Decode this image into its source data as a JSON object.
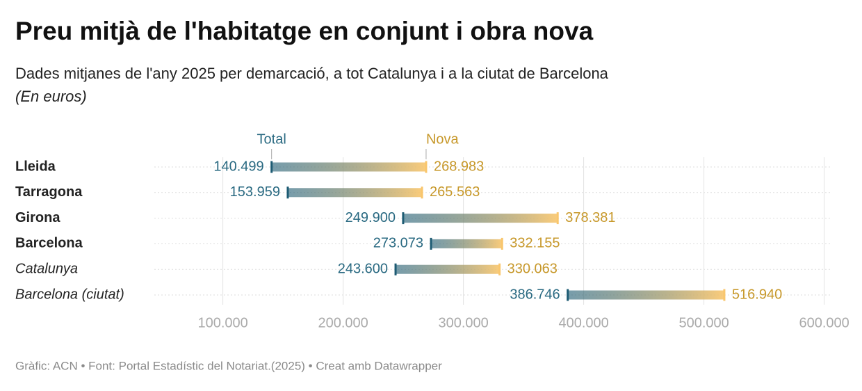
{
  "chart_data": {
    "type": "dumbbell",
    "title": "Preu mitjà de l'habitatge en conjunt i obra nova",
    "subtitle": "Dades mitjanes de l'any 2025 per demarcació, a tot Catalunya i a la ciutat de Barcelona",
    "unit_note": "(En euros)",
    "footer": "Gràfic: ACN • Font: Portal Estadístic del Notariat.(2025) • Creat amb Datawrapper",
    "categories": [
      "Lleida",
      "Tarragona",
      "Girona",
      "Barcelona",
      "Catalunya",
      "Barcelona (ciutat)"
    ],
    "series": [
      {
        "name": "Total",
        "color": "#1d5b73",
        "label_color": "#2a6a82",
        "values": [
          140499,
          153959,
          249900,
          273073,
          243600,
          386746
        ],
        "value_labels": [
          "140.499",
          "153.959",
          "249.900",
          "273.073",
          "243.600",
          "386.746"
        ]
      },
      {
        "name": "Nova",
        "color": "#f9c66d",
        "label_color": "#c7982a",
        "values": [
          268983,
          265563,
          378381,
          332155,
          330063,
          516940
        ],
        "value_labels": [
          "268.983",
          "265.563",
          "378.381",
          "332.155",
          "330.063",
          "516.940"
        ]
      }
    ],
    "xlim": [
      43000,
      606000
    ],
    "xticks": [
      {
        "value": 100000,
        "label": "100.000"
      },
      {
        "value": 200000,
        "label": "200.000"
      },
      {
        "value": 300000,
        "label": "300.000"
      },
      {
        "value": 400000,
        "label": "400.000"
      },
      {
        "value": 500000,
        "label": "500.000"
      },
      {
        "value": 600000,
        "label": "600.000"
      }
    ],
    "grid": true
  }
}
